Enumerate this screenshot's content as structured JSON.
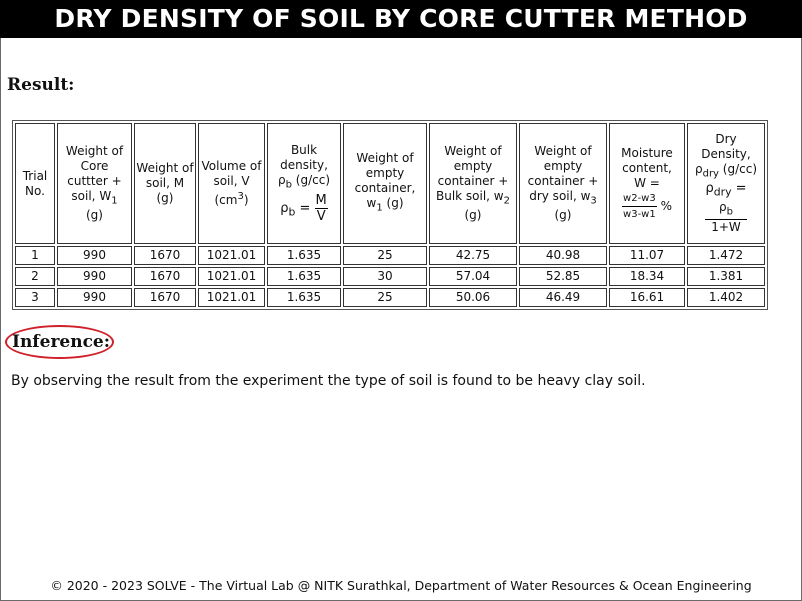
{
  "page": {
    "title": "DRY DENSITY OF SOIL BY CORE CUTTER METHOD",
    "result_heading": "Result:",
    "inference_heading": "Inference:",
    "inference_text": "By observing the result from the experiment the type of soil is found to be heavy clay soil.",
    "footer": "© 2020 - 2023 SOLVE - The Virtual Lab @ NITK Surathkal, Department of Water Resources & Ocean Engineering"
  },
  "table": {
    "headers": {
      "trial": "Trial No.",
      "core_weight": "Weight of Core cuttter + soil, W",
      "core_weight_sub": "1",
      "core_weight_unit": "(g)",
      "soil_weight": "Weight of soil, M (g)",
      "volume": "Volume of soil, V",
      "volume_unit": "(cm",
      "volume_sup": "3",
      "volume_close": ")",
      "bulk_line1": "Bulk density,",
      "bulk_sym": "ρ",
      "bulk_sub": "b",
      "bulk_unit": " (g/cc)",
      "bulk_formula_lhs": "ρ",
      "bulk_formula_sub": "b",
      "bulk_formula_eq": " = ",
      "bulk_formula_num": "M",
      "bulk_formula_den": "V",
      "container": "Weight of empty container, w",
      "container_sub": "1",
      "container_unit": " (g)",
      "w2": "Weight of empty container + Bulk soil, w",
      "w2_sub": "2",
      "w2_unit": "(g)",
      "w3": "Weight of empty container + dry soil, w",
      "w3_sub": "3",
      "w3_unit": "(g)",
      "moisture_line1": "Moisture content,",
      "moisture_line2": "W =",
      "moisture_num": "w2-w3",
      "moisture_den": "w3-w1",
      "moisture_pct": "%",
      "dry_line1": "Dry Density,",
      "dry_sym": "ρ",
      "dry_sub": "dry",
      "dry_unit": " (g/cc)",
      "dry_formula_lhs": "ρ",
      "dry_formula_sub": "dry",
      "dry_formula_eq": " =",
      "dry_formula_num": "ρ",
      "dry_formula_num_sub": "b",
      "dry_formula_den": "1+W"
    },
    "rows": [
      {
        "trial": "1",
        "core": "990",
        "soil": "1670",
        "volume": "1021.01",
        "bulk": "1.635",
        "w1": "25",
        "w2": "42.75",
        "w3": "40.98",
        "moisture": "11.07",
        "dry": "1.472"
      },
      {
        "trial": "2",
        "core": "990",
        "soil": "1670",
        "volume": "1021.01",
        "bulk": "1.635",
        "w1": "30",
        "w2": "57.04",
        "w3": "52.85",
        "moisture": "18.34",
        "dry": "1.381"
      },
      {
        "trial": "3",
        "core": "990",
        "soil": "1670",
        "volume": "1021.01",
        "bulk": "1.635",
        "w1": "25",
        "w2": "50.06",
        "w3": "46.49",
        "moisture": "16.61",
        "dry": "1.402"
      }
    ]
  },
  "annotation": {
    "circle_color": "#d0202a"
  }
}
